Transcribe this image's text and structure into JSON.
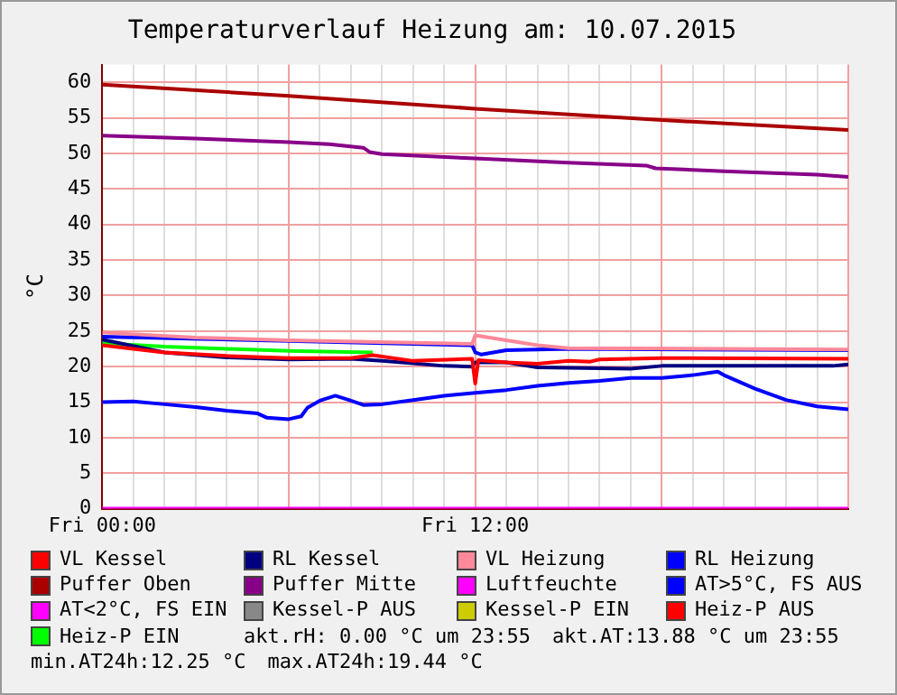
{
  "chart_data": {
    "type": "line",
    "title": "Temperaturverlauf Heizung am: 10.07.2015",
    "ylabel": "°C",
    "xlim": [
      "2015-07-10T00:00",
      "2015-07-11T00:00"
    ],
    "xticks": [
      {
        "value": "2015-07-10T00:00",
        "label": "Fri 00:00"
      },
      {
        "value": "2015-07-10T01:00",
        "label": null
      },
      {
        "value": "2015-07-10T02:00",
        "label": null
      },
      {
        "value": "2015-07-10T03:00",
        "label": null
      },
      {
        "value": "2015-07-10T04:00",
        "label": null
      },
      {
        "value": "2015-07-10T05:00",
        "label": null
      },
      {
        "value": "2015-07-10T06:00",
        "label": null
      },
      {
        "value": "2015-07-10T07:00",
        "label": null
      },
      {
        "value": "2015-07-10T08:00",
        "label": null
      },
      {
        "value": "2015-07-10T09:00",
        "label": null
      },
      {
        "value": "2015-07-10T10:00",
        "label": null
      },
      {
        "value": "2015-07-10T11:00",
        "label": null
      },
      {
        "value": "2015-07-10T12:00",
        "label": "Fri 12:00"
      },
      {
        "value": "2015-07-10T13:00",
        "label": null
      },
      {
        "value": "2015-07-10T14:00",
        "label": null
      },
      {
        "value": "2015-07-10T15:00",
        "label": null
      },
      {
        "value": "2015-07-10T16:00",
        "label": null
      },
      {
        "value": "2015-07-10T17:00",
        "label": null
      },
      {
        "value": "2015-07-10T18:00",
        "label": null
      },
      {
        "value": "2015-07-10T19:00",
        "label": null
      },
      {
        "value": "2015-07-10T20:00",
        "label": null
      },
      {
        "value": "2015-07-10T21:00",
        "label": null
      },
      {
        "value": "2015-07-10T22:00",
        "label": null
      },
      {
        "value": "2015-07-10T23:00",
        "label": null
      },
      {
        "value": "2015-07-11T00:00",
        "label": null
      }
    ],
    "ylim": [
      0,
      62.5
    ],
    "yticks": [
      0,
      5,
      10,
      15,
      20,
      25,
      30,
      35,
      40,
      45,
      50,
      55,
      60
    ],
    "grid": true,
    "legend": "bottom",
    "marker": "none",
    "line_style": "solid",
    "series": [
      {
        "name": "VL Kessel",
        "color": "#ff0000",
        "x": [
          "2015-07-10T00:00",
          "2015-07-10T02:00",
          "2015-07-10T04:00",
          "2015-07-10T06:00",
          "2015-07-10T08:00",
          "2015-07-10T08:42",
          "2015-07-10T10:00",
          "2015-07-10T11:54",
          "2015-07-10T12:00",
          "2015-07-10T12:06",
          "2015-07-10T13:00",
          "2015-07-10T14:00",
          "2015-07-10T15:00",
          "2015-07-10T15:42",
          "2015-07-10T16:00",
          "2015-07-10T18:00",
          "2015-07-11T00:00"
        ],
        "values": [
          23.0,
          22.0,
          21.5,
          21.2,
          21.2,
          21.6,
          20.8,
          21.1,
          17.6,
          20.9,
          20.6,
          20.4,
          20.8,
          20.7,
          21.0,
          21.2,
          21.1
        ]
      },
      {
        "name": "RL Kessel",
        "color": "#000080",
        "x": [
          "2015-07-10T00:00",
          "2015-07-10T02:00",
          "2015-07-10T04:00",
          "2015-07-10T06:00",
          "2015-07-10T08:00",
          "2015-07-10T09:00",
          "2015-07-10T11:00",
          "2015-07-10T11:54",
          "2015-07-10T12:00",
          "2015-07-10T13:00",
          "2015-07-10T14:00",
          "2015-07-10T17:00",
          "2015-07-10T18:00",
          "2015-07-10T23:30",
          "2015-07-11T00:00"
        ],
        "values": [
          23.8,
          22.0,
          21.3,
          21.0,
          21.1,
          20.8,
          20.1,
          20.0,
          20.6,
          20.6,
          19.9,
          19.7,
          20.1,
          20.1,
          20.3
        ]
      },
      {
        "name": "VL Heizung",
        "color": "#ff8899",
        "x": [
          "2015-07-10T00:00",
          "2015-07-10T03:00",
          "2015-07-10T06:00",
          "2015-07-10T11:54",
          "2015-07-10T12:00",
          "2015-07-10T13:00",
          "2015-07-10T14:00",
          "2015-07-10T15:00",
          "2015-07-11T00:00"
        ],
        "values": [
          24.8,
          24.1,
          23.7,
          23.2,
          24.4,
          23.7,
          23.0,
          22.6,
          22.4
        ]
      },
      {
        "name": "RL Heizung",
        "color": "#0000ff",
        "x": [
          "2015-07-10T00:00",
          "2015-07-10T06:00",
          "2015-07-10T11:54",
          "2015-07-10T12:00",
          "2015-07-10T12:12",
          "2015-07-10T13:00",
          "2015-07-10T15:00",
          "2015-07-11T00:00"
        ],
        "values": [
          24.2,
          23.6,
          23.0,
          22.0,
          21.7,
          22.3,
          22.5,
          22.3
        ]
      },
      {
        "name": "Puffer Oben",
        "color": "#aa0000",
        "x": [
          "2015-07-10T00:00",
          "2015-07-10T06:00",
          "2015-07-10T12:00",
          "2015-07-10T18:00",
          "2015-07-11T00:00"
        ],
        "values": [
          59.7,
          58.1,
          56.3,
          54.7,
          53.3
        ]
      },
      {
        "name": "Puffer Mitte",
        "color": "#880088",
        "x": [
          "2015-07-10T00:00",
          "2015-07-10T03:00",
          "2015-07-10T06:00",
          "2015-07-10T07:18",
          "2015-07-10T08:24",
          "2015-07-10T08:36",
          "2015-07-10T09:00",
          "2015-07-10T12:00",
          "2015-07-10T15:00",
          "2015-07-10T17:30",
          "2015-07-10T17:48",
          "2015-07-10T20:00",
          "2015-07-10T23:00",
          "2015-07-11T00:00"
        ],
        "values": [
          52.5,
          52.1,
          51.6,
          51.3,
          50.8,
          50.2,
          49.9,
          49.3,
          48.7,
          48.3,
          47.9,
          47.5,
          47.0,
          46.7
        ]
      },
      {
        "name": "Luftfeuchte",
        "color": "#ff00ff",
        "x": [
          "2015-07-10T00:00",
          "2015-07-11T00:00"
        ],
        "values": [
          0,
          0
        ]
      },
      {
        "name": "AT>5°C, FS AUS",
        "color": "#0000ff",
        "x": [
          "2015-07-10T00:00",
          "2015-07-10T01:00",
          "2015-07-10T02:00",
          "2015-07-10T03:00",
          "2015-07-10T04:00",
          "2015-07-10T05:00",
          "2015-07-10T05:18",
          "2015-07-10T06:00",
          "2015-07-10T06:24",
          "2015-07-10T06:36",
          "2015-07-10T07:00",
          "2015-07-10T07:30",
          "2015-07-10T08:00",
          "2015-07-10T08:24",
          "2015-07-10T09:00",
          "2015-07-10T10:00",
          "2015-07-10T11:00",
          "2015-07-10T12:00",
          "2015-07-10T13:00",
          "2015-07-10T14:00",
          "2015-07-10T15:00",
          "2015-07-10T16:00",
          "2015-07-10T17:00",
          "2015-07-10T18:00",
          "2015-07-10T19:00",
          "2015-07-10T19:48",
          "2015-07-10T20:00",
          "2015-07-10T21:00",
          "2015-07-10T22:00",
          "2015-07-10T23:00",
          "2015-07-11T00:00"
        ],
        "values": [
          15.0,
          15.1,
          14.7,
          14.3,
          13.8,
          13.4,
          12.8,
          12.6,
          13.0,
          14.2,
          15.2,
          15.9,
          15.2,
          14.6,
          14.7,
          15.3,
          15.9,
          16.3,
          16.7,
          17.3,
          17.7,
          18.0,
          18.4,
          18.4,
          18.8,
          19.3,
          18.8,
          16.9,
          15.3,
          14.4,
          14.0
        ]
      },
      {
        "name": "AT<2°C, FS EIN",
        "color": "#ff00ff"
      },
      {
        "name": "Kessel-P AUS",
        "color": "#888888"
      },
      {
        "name": "Kessel-P EIN",
        "color": "#cccc00"
      },
      {
        "name": "Heiz-P AUS",
        "color": "#ff0000"
      },
      {
        "name": "Heiz-P EIN",
        "color": "#00ff00",
        "x": [
          "2015-07-10T00:00",
          "2015-07-10T02:00",
          "2015-07-10T04:00",
          "2015-07-10T06:00",
          "2015-07-10T08:42"
        ],
        "values": [
          23.3,
          22.8,
          22.5,
          22.2,
          22.0
        ]
      }
    ],
    "annotations": [
      "akt.rH: 0.00 °C um 23:55",
      "akt.AT:13.88 °C um 23:55",
      "min.AT24h:12.25 °C",
      "max.AT24h:19.44 °C"
    ]
  }
}
